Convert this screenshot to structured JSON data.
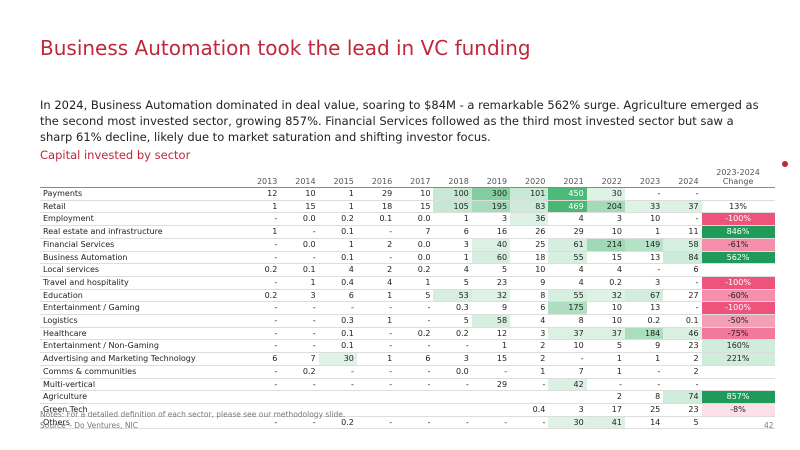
{
  "slide": {
    "title": "Business Automation took the lead in VC funding",
    "summary": "In 2024, Business Automation dominated in deal value, soaring to $84M - a remarkable 562% surge. Agriculture emerged as the second most invested sector, growing 857%. Financial Services followed as the third most invested sector but saw a sharp 61% decline, likely due to market saturation and shifting investor focus.",
    "subtitle": "Capital invested by sector",
    "notes": "Notes: For a detailed definition of each sector, please see our methodology slide.",
    "source": "Source – Do Ventures, NIC",
    "page_number": "42"
  },
  "table": {
    "columns": [
      "2013",
      "2014",
      "2015",
      "2016",
      "2017",
      "2018",
      "2019",
      "2020",
      "2021",
      "2022",
      "2023",
      "2024"
    ],
    "change_label": [
      "2023-2024",
      "Change"
    ],
    "rows": [
      {
        "sector": "Payments",
        "cells": [
          "12",
          "10",
          "1",
          "29",
          "10",
          "100",
          "300",
          "101",
          "450",
          "30",
          "-",
          "-",
          null
        ]
      },
      {
        "sector": "Retail",
        "cells": [
          "1",
          "15",
          "1",
          "18",
          "15",
          "105",
          "195",
          "83",
          "469",
          "204",
          "33",
          "37",
          "13%"
        ]
      },
      {
        "sector": "Employment",
        "cells": [
          "-",
          "0.0",
          "0.2",
          "0.1",
          "0.0",
          "1",
          "3",
          "36",
          "4",
          "3",
          "10",
          "-",
          "-100%"
        ]
      },
      {
        "sector": "Real estate and infrastructure",
        "cells": [
          "1",
          "-",
          "0.1",
          "-",
          "7",
          "6",
          "16",
          "26",
          "29",
          "10",
          "1",
          "11",
          "846%"
        ]
      },
      {
        "sector": "Financial Services",
        "cells": [
          "-",
          "0.0",
          "1",
          "2",
          "0.0",
          "3",
          "40",
          "25",
          "61",
          "214",
          "149",
          "58",
          "-61%"
        ]
      },
      {
        "sector": "Business Automation",
        "cells": [
          "-",
          "-",
          "0.1",
          "-",
          "0.0",
          "1",
          "60",
          "18",
          "55",
          "15",
          "13",
          "84",
          "562%"
        ]
      },
      {
        "sector": "Local services",
        "cells": [
          "0.2",
          "0.1",
          "4",
          "2",
          "0.2",
          "4",
          "5",
          "10",
          "4",
          "4",
          "-",
          "6",
          null
        ]
      },
      {
        "sector": "Travel and hospitality",
        "cells": [
          "-",
          "1",
          "0.4",
          "4",
          "1",
          "5",
          "23",
          "9",
          "4",
          "0.2",
          "3",
          "-",
          "-100%"
        ]
      },
      {
        "sector": "Education",
        "cells": [
          "0.2",
          "3",
          "6",
          "1",
          "5",
          "53",
          "32",
          "8",
          "55",
          "32",
          "67",
          "27",
          "-60%"
        ]
      },
      {
        "sector": "Entertainment / Gaming",
        "cells": [
          "-",
          "-",
          "-",
          "-",
          "-",
          "0.3",
          "9",
          "6",
          "175",
          "10",
          "13",
          "-",
          "-100%"
        ]
      },
      {
        "sector": "Logistics",
        "cells": [
          "-",
          "-",
          "0.3",
          "1",
          "-",
          "5",
          "58",
          "4",
          "8",
          "10",
          "0.2",
          "0.1",
          "-50%"
        ]
      },
      {
        "sector": "Healthcare",
        "cells": [
          "-",
          "-",
          "0.1",
          "-",
          "0.2",
          "0.2",
          "12",
          "3",
          "37",
          "37",
          "184",
          "46",
          "-75%"
        ]
      },
      {
        "sector": "Entertainment / Non-Gaming",
        "cells": [
          "-",
          "-",
          "0.1",
          "-",
          "-",
          "-",
          "1",
          "2",
          "10",
          "5",
          "9",
          "23",
          "160%"
        ]
      },
      {
        "sector": "Advertising and Marketing Technology",
        "cells": [
          "6",
          "7",
          "30",
          "1",
          "6",
          "3",
          "15",
          "2",
          "-",
          "1",
          "1",
          "2",
          "221%"
        ]
      },
      {
        "sector": "Comms & communities",
        "cells": [
          "-",
          "0.2",
          "-",
          "-",
          "-",
          "0.0",
          "-",
          "1",
          "7",
          "1",
          "-",
          "2",
          null
        ]
      },
      {
        "sector": "Multi-vertical",
        "cells": [
          "-",
          "-",
          "-",
          "-",
          "-",
          "-",
          "29",
          "-",
          "42",
          "-",
          "-",
          "-",
          null
        ]
      },
      {
        "sector": "Agriculture",
        "cells": [
          null,
          null,
          null,
          null,
          null,
          null,
          null,
          null,
          null,
          "2",
          "8",
          "74",
          "857%"
        ]
      },
      {
        "sector": "Green Tech",
        "cells": [
          null,
          null,
          null,
          null,
          null,
          null,
          null,
          "0.4",
          "3",
          "17",
          "25",
          "23",
          "-8%"
        ]
      },
      {
        "sector": "Others",
        "cells": [
          "-",
          "-",
          "0.2",
          "-",
          "-",
          "-",
          "-",
          "-",
          "30",
          "41",
          "14",
          "5",
          null
        ]
      }
    ]
  }
}
